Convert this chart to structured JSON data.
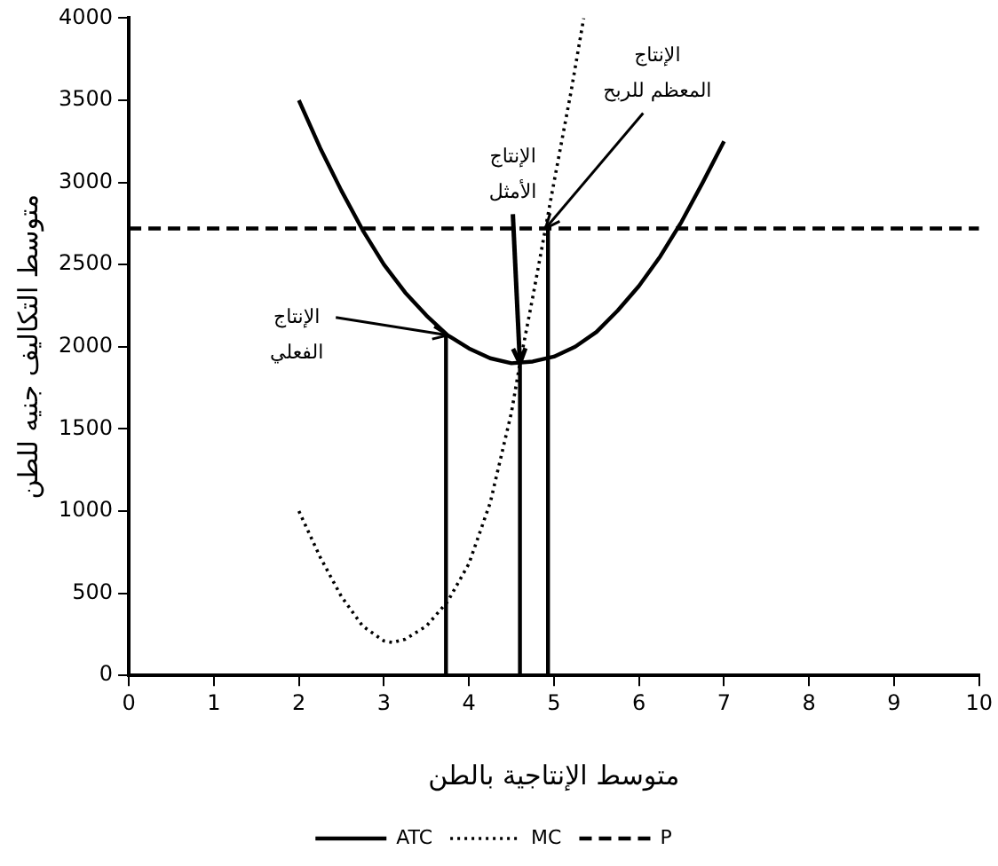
{
  "chart_data": {
    "type": "line",
    "xlabel": "متوسط الإنتاجية بالطن",
    "ylabel": "متوسط التكاليف جنيه للطن",
    "xlim": [
      0,
      10
    ],
    "xticks": [
      0,
      1,
      2,
      3,
      4,
      5,
      6,
      7,
      8,
      9,
      10
    ],
    "ylim": [
      0,
      4000
    ],
    "yticks": [
      0,
      500,
      1000,
      1500,
      2000,
      2500,
      3000,
      3500,
      4000
    ],
    "grid": false,
    "legend": "bottom",
    "marker": "none",
    "series": [
      {
        "name": "ATC",
        "color": "#000000",
        "line_style": "solid",
        "x": [
          2,
          2.25,
          2.5,
          2.75,
          3,
          3.25,
          3.5,
          3.75,
          4,
          4.25,
          4.5,
          4.75,
          5,
          5.25,
          5.5,
          5.75,
          6,
          6.25,
          6.5,
          6.75,
          7
        ],
        "values": [
          3500,
          3210,
          2950,
          2710,
          2500,
          2330,
          2190,
          2070,
          1990,
          1930,
          1900,
          1910,
          1940,
          2000,
          2090,
          2220,
          2370,
          2550,
          2760,
          3000,
          3250
        ]
      },
      {
        "name": "MC",
        "color": "#000000",
        "line_style": "dotted",
        "x": [
          2,
          2.25,
          2.5,
          2.75,
          3,
          3.1,
          3.25,
          3.5,
          3.75,
          4,
          4.25,
          4.5,
          4.6,
          4.75,
          4.9,
          5,
          5.2,
          5.35
        ],
        "values": [
          1000,
          720,
          480,
          300,
          210,
          200,
          220,
          300,
          450,
          680,
          1050,
          1600,
          1900,
          2300,
          2720,
          3000,
          3550,
          4000
        ]
      },
      {
        "name": "P",
        "color": "#000000",
        "line_style": "dashed",
        "x": [
          0,
          10
        ],
        "values": [
          2720,
          2720
        ]
      },
      {
        "color": "#000000",
        "line_style": "solid",
        "x": [
          3.73,
          3.73
        ],
        "values": [
          0,
          2080
        ]
      },
      {
        "color": "#000000",
        "line_style": "solid",
        "x": [
          4.6,
          4.6
        ],
        "values": [
          0,
          1900
        ]
      },
      {
        "color": "#000000",
        "line_style": "solid",
        "x": [
          4.93,
          4.93
        ],
        "values": [
          0,
          2720
        ]
      }
    ],
    "annotations": [
      {
        "text": "الإنتاج الفعلي",
        "x": 3.75,
        "y": 2070
      },
      {
        "text": "الإنتاج الأمثل",
        "x": 4.6,
        "y": 1900
      },
      {
        "text": "الإنتاج المعظم للربح",
        "x": 4.9,
        "y": 2720
      }
    ]
  }
}
